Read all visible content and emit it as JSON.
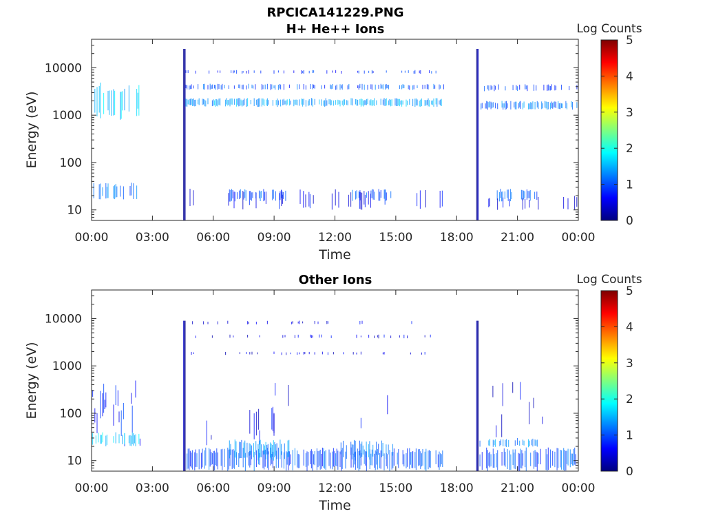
{
  "figure": {
    "title_line1": "RPCICA141229.PNG",
    "title_line2": "H+ He++ Ions"
  },
  "colorbar": {
    "label": "Log Counts",
    "ticks": [
      "0",
      "1",
      "2",
      "3",
      "4",
      "5"
    ],
    "range": [
      0,
      5
    ],
    "colormap": "jet",
    "colors": [
      "#00007f",
      "#0000ff",
      "#007fff",
      "#00ffff",
      "#7fff7f",
      "#ffff00",
      "#ff7f00",
      "#ff0000",
      "#7f0000"
    ]
  },
  "chart_data": [
    {
      "type": "heatmap",
      "title": "",
      "xlabel": "Time",
      "ylabel": "Energy (eV)",
      "xticks": [
        "00:00",
        "03:00",
        "06:00",
        "09:00",
        "12:00",
        "15:00",
        "18:00",
        "21:00",
        "00:00"
      ],
      "xlim_hours": [
        0,
        24
      ],
      "yscale": "log",
      "ylim": [
        6,
        40000
      ],
      "yticks": [
        "10",
        "100",
        "1000",
        "10000"
      ],
      "colorbar_label": "Log Counts",
      "clim": [
        0,
        5
      ],
      "bands": [
        {
          "t": [
            0.0,
            2.4
          ],
          "e": [
            800,
            5000
          ],
          "level": 1.6,
          "density": 0.45
        },
        {
          "t": [
            0.0,
            2.4
          ],
          "e": [
            16,
            38
          ],
          "level": 1.1,
          "density": 0.45
        },
        {
          "t": [
            4.55,
            4.65
          ],
          "e": [
            6,
            25000
          ],
          "level": 0.3,
          "density": 1.0
        },
        {
          "t": [
            4.65,
            17.4
          ],
          "e": [
            1500,
            2300
          ],
          "level": 1.4,
          "density": 0.7
        },
        {
          "t": [
            4.65,
            17.4
          ],
          "e": [
            3400,
            4600
          ],
          "level": 1.0,
          "density": 0.45
        },
        {
          "t": [
            4.65,
            17.4
          ],
          "e": [
            7500,
            9000
          ],
          "level": 0.8,
          "density": 0.2
        },
        {
          "t": [
            4.8,
            17.4
          ],
          "e": [
            10,
            28
          ],
          "level": 0.6,
          "density": 0.12
        },
        {
          "t": [
            6.8,
            9.6
          ],
          "e": [
            15,
            28
          ],
          "level": 1.0,
          "density": 0.55
        },
        {
          "t": [
            12.8,
            14.9
          ],
          "e": [
            15,
            28
          ],
          "level": 1.0,
          "density": 0.45
        },
        {
          "t": [
            19.0,
            19.1
          ],
          "e": [
            6,
            25000
          ],
          "level": 0.3,
          "density": 1.0
        },
        {
          "t": [
            19.15,
            24.0
          ],
          "e": [
            1300,
            2000
          ],
          "level": 1.2,
          "density": 0.7
        },
        {
          "t": [
            19.15,
            24.0
          ],
          "e": [
            3200,
            4500
          ],
          "level": 0.9,
          "density": 0.3
        },
        {
          "t": [
            20.0,
            22.0
          ],
          "e": [
            15,
            28
          ],
          "level": 1.0,
          "density": 0.5
        },
        {
          "t": [
            19.2,
            24.0
          ],
          "e": [
            10,
            20
          ],
          "level": 0.6,
          "density": 0.15
        }
      ]
    },
    {
      "type": "heatmap",
      "title": "Other Ions",
      "xlabel": "Time",
      "ylabel": "Energy (eV)",
      "xticks": [
        "00:00",
        "03:00",
        "06:00",
        "09:00",
        "12:00",
        "15:00",
        "18:00",
        "21:00",
        "00:00"
      ],
      "xlim_hours": [
        0,
        24
      ],
      "yscale": "log",
      "ylim": [
        6,
        40000
      ],
      "yticks": [
        "10",
        "100",
        "1000",
        "10000"
      ],
      "colorbar_label": "Log Counts",
      "clim": [
        0,
        5
      ],
      "bands": [
        {
          "t": [
            0.0,
            2.4
          ],
          "e": [
            14,
            500
          ],
          "level": 0.8,
          "density": 0.35
        },
        {
          "t": [
            0.0,
            2.4
          ],
          "e": [
            20,
            40
          ],
          "level": 1.7,
          "density": 0.55
        },
        {
          "t": [
            4.55,
            4.65
          ],
          "e": [
            6,
            9000
          ],
          "level": 0.3,
          "density": 1.0
        },
        {
          "t": [
            4.65,
            17.4
          ],
          "e": [
            6,
            19
          ],
          "level": 1.0,
          "density": 0.6
        },
        {
          "t": [
            4.65,
            17.4
          ],
          "e": [
            19,
            500
          ],
          "level": 0.5,
          "density": 0.04
        },
        {
          "t": [
            4.65,
            17.4
          ],
          "e": [
            1700,
            2000
          ],
          "level": 0.5,
          "density": 0.12
        },
        {
          "t": [
            4.65,
            17.4
          ],
          "e": [
            3800,
            4600
          ],
          "level": 0.5,
          "density": 0.12
        },
        {
          "t": [
            4.65,
            17.4
          ],
          "e": [
            7500,
            9000
          ],
          "level": 0.5,
          "density": 0.08
        },
        {
          "t": [
            6.8,
            9.8
          ],
          "e": [
            10,
            28
          ],
          "level": 1.3,
          "density": 0.55
        },
        {
          "t": [
            12.3,
            14.9
          ],
          "e": [
            10,
            28
          ],
          "level": 1.2,
          "density": 0.5
        },
        {
          "t": [
            7.8,
            9.2
          ],
          "e": [
            28,
            150
          ],
          "level": 0.6,
          "density": 0.2
        },
        {
          "t": [
            19.0,
            19.1
          ],
          "e": [
            6,
            9000
          ],
          "level": 0.3,
          "density": 1.0
        },
        {
          "t": [
            19.15,
            24.0
          ],
          "e": [
            6,
            19
          ],
          "level": 1.0,
          "density": 0.6
        },
        {
          "t": [
            19.15,
            22.0
          ],
          "e": [
            19,
            30
          ],
          "level": 1.3,
          "density": 0.5
        },
        {
          "t": [
            19.3,
            22.5
          ],
          "e": [
            30,
            600
          ],
          "level": 0.5,
          "density": 0.08
        }
      ]
    }
  ]
}
